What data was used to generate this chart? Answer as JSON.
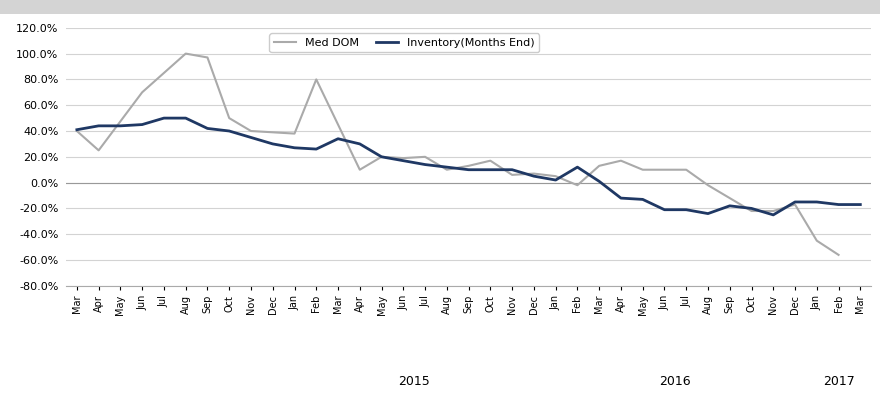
{
  "labels": [
    "Mar",
    "Apr",
    "May",
    "Jun",
    "Jul",
    "Aug",
    "Sep",
    "Oct",
    "Nov",
    "Dec",
    "Jan",
    "Feb",
    "Mar",
    "Apr",
    "May",
    "Jun",
    "Jul",
    "Aug",
    "Sep",
    "Oct",
    "Nov",
    "Dec",
    "Jan",
    "Feb",
    "Mar",
    "Apr",
    "May",
    "Jun",
    "Jul",
    "Aug",
    "Sep",
    "Oct",
    "Nov",
    "Dec",
    "Jan",
    "Feb",
    "Mar"
  ],
  "inventory": [
    41.0,
    44.0,
    44.0,
    45.0,
    50.0,
    50.0,
    42.0,
    40.0,
    35.0,
    30.0,
    27.0,
    26.0,
    34.0,
    30.0,
    20.0,
    17.0,
    14.0,
    12.0,
    10.0,
    10.0,
    10.0,
    5.0,
    2.0,
    12.0,
    1.0,
    -12.0,
    -13.0,
    -21.0,
    -21.0,
    -24.0,
    -18.0,
    -20.0,
    -25.0,
    -15.0,
    -15.0,
    -17.0,
    -17.0
  ],
  "med_dom": [
    40.0,
    25.0,
    null,
    70.0,
    null,
    100.0,
    97.0,
    50.0,
    40.0,
    null,
    38.0,
    80.0,
    45.0,
    10.0,
    20.0,
    19.0,
    20.0,
    10.0,
    13.0,
    17.0,
    6.0,
    7.0,
    5.0,
    -2.0,
    13.0,
    17.0,
    10.0,
    null,
    10.0,
    -2.0,
    null,
    -22.0,
    -22.0,
    -17.0,
    -45.0,
    -56.0,
    null
  ],
  "inventory_color": "#1F3864",
  "med_dom_color": "#AAAAAA",
  "inventory_linewidth": 2.0,
  "med_dom_linewidth": 1.5,
  "ylim": [
    -80.0,
    120.0
  ],
  "yticks": [
    -80.0,
    -60.0,
    -40.0,
    -20.0,
    0.0,
    20.0,
    40.0,
    60.0,
    80.0,
    100.0,
    120.0
  ],
  "legend_inventory": "Inventory(Months End)",
  "legend_med_dom": "Med DOM",
  "background_color": "#FFFFFF",
  "grid_color": "#D3D3D3",
  "year_labels": [
    "2015",
    "2016",
    "2017"
  ],
  "year_centers": [
    15.5,
    27.5,
    35.0
  ],
  "top_bar_color": "#E0E0E0",
  "top_bar_height": 10
}
